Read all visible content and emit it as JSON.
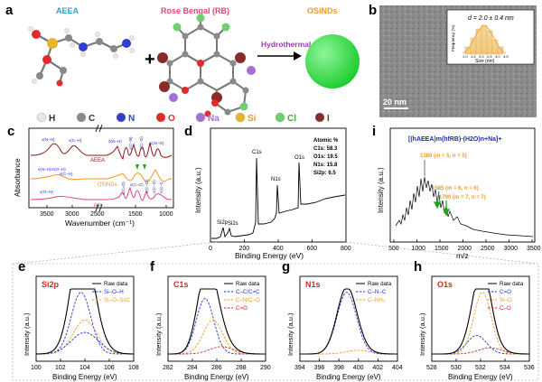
{
  "panel_labels": [
    "a",
    "b",
    "c",
    "d",
    "e",
    "f",
    "g",
    "h",
    "i"
  ],
  "panel_a": {
    "aeea_label": "AEEA",
    "rb_label": "Rose Bengal (RB)",
    "osind_label": "OSiNDs",
    "arrow_label": "Hydrothermal",
    "plus": "+",
    "legend": [
      {
        "sym": "H",
        "color": "#e6e6e6"
      },
      {
        "sym": "C",
        "color": "#8a8a8a"
      },
      {
        "sym": "N",
        "color": "#2f3fd0"
      },
      {
        "sym": "O",
        "color": "#e22b2b"
      },
      {
        "sym": "Na",
        "color": "#a46fd6"
      },
      {
        "sym": "Si",
        "color": "#e8b52c"
      },
      {
        "sym": "Cl",
        "color": "#6fd070"
      },
      {
        "sym": "I",
        "color": "#8b2a2a"
      }
    ],
    "colors": {
      "aeea": "#29a3dc",
      "rb": "#e0437f",
      "osind": "#f29a1f",
      "arrow": "#9b3bb0",
      "dot": "#27d636"
    }
  },
  "panel_b": {
    "scale_bar": "20 nm",
    "inset_title": "d = 2.0 ± 0.4 nm",
    "inset_xlabel": "Size (nm)",
    "inset_ylabel": "Frequency (%)",
    "inset_xticks": [
      "1.0",
      "1.5",
      "2.0",
      "2.5",
      "3.0",
      "3.5"
    ]
  },
  "panel_c": {
    "ylabel": "Absorbance",
    "xlabel": "Wavenumber (cm⁻¹)",
    "xticks": [
      "3500",
      "3000",
      "2500",
      "1500",
      "1000"
    ],
    "series": [
      {
        "name": "AEEA",
        "color": "#8b1a1a"
      },
      {
        "name": "OSiNDs",
        "color": "#f29a1f"
      },
      {
        "name": "RB",
        "color": "#e0437f"
      }
    ],
    "annotations_aeea": [
      "ν(N–H)",
      "ν(C–H)",
      "δ(N–H)",
      "ν(C–N)",
      "ν(C–O)",
      "ν(Si–O)"
    ],
    "annotations_osind": [
      "ν(N–H)/ν(O–H)",
      "ν(C–H)"
    ],
    "annotations_rb": [
      "ν(O–H)",
      "ν(C=O)",
      "ν(C=C)",
      "ν(C–Cl)",
      "ν(C–O)",
      "ν(C–I)"
    ]
  },
  "panel_d": {
    "ylabel": "Intensity (a.u.)",
    "xlabel": "Binding Energy (eV)",
    "xticks": [
      "0",
      "200",
      "400",
      "600",
      "800"
    ],
    "peaks": [
      "Si2p",
      "Si2s",
      "C1s",
      "N1s",
      "O1s"
    ],
    "atomic_title": "Atomic %",
    "atomic": [
      "C1s: 58.3",
      "O1s: 19.5",
      "N1s: 15.8",
      "Si2p: 6.5"
    ]
  },
  "panel_i": {
    "ylabel": "Intensity (a.u.)",
    "xlabel": "m/z",
    "formula": "[(hAEEA)m(hfRB)·(H2O)n+Na]+",
    "xticks": [
      "500",
      "1000",
      "1500",
      "2000",
      "2500",
      "3000",
      "3500"
    ],
    "annotations": [
      "1380 (m = 5, n = 5)",
      "1585 (m = 6, n = 6)",
      "1790 (m = 7, n = 7)"
    ],
    "annotation_color": "#f29a1f"
  },
  "xps_panels": [
    {
      "id": "e",
      "title": "Si2p",
      "xlabel": "Binding Energy (eV)",
      "xticks": [
        "100",
        "102",
        "104",
        "106",
        "108"
      ],
      "legend": [
        {
          "name": "Raw data",
          "color": "#000000"
        },
        {
          "name": "Si–O–H",
          "color": "#2633d6"
        },
        {
          "name": "Si–O–Si/C",
          "color": "#f29a1f"
        }
      ]
    },
    {
      "id": "f",
      "title": "C1s",
      "xlabel": "Binding Energy (eV)",
      "xticks": [
        "282",
        "284",
        "286",
        "288",
        "290"
      ],
      "legend": [
        {
          "name": "Raw data",
          "color": "#000000"
        },
        {
          "name": "C–C/C=C",
          "color": "#2633d6"
        },
        {
          "name": "C–N/C–O",
          "color": "#f29a1f"
        },
        {
          "name": "C=O",
          "color": "#e02323"
        }
      ]
    },
    {
      "id": "g",
      "title": "N1s",
      "xlabel": "Binding Energy (eV)",
      "xticks": [
        "394",
        "396",
        "398",
        "400",
        "402",
        "404"
      ],
      "legend": [
        {
          "name": "Raw data",
          "color": "#000000"
        },
        {
          "name": "C–N–C",
          "color": "#2633d6"
        },
        {
          "name": "C–NH₂",
          "color": "#f29a1f"
        }
      ]
    },
    {
      "id": "h",
      "title": "O1s",
      "xlabel": "Binding Energy (eV)",
      "xticks": [
        "528",
        "530",
        "532",
        "534",
        "536"
      ],
      "legend": [
        {
          "name": "Raw data",
          "color": "#000000"
        },
        {
          "name": "C=O",
          "color": "#2633d6"
        },
        {
          "name": "Si–O",
          "color": "#f29a1f"
        },
        {
          "name": "C–O",
          "color": "#e02323"
        }
      ]
    }
  ],
  "xps_ylabel": "Intensity (a.u.)",
  "title_color": "#e02323"
}
